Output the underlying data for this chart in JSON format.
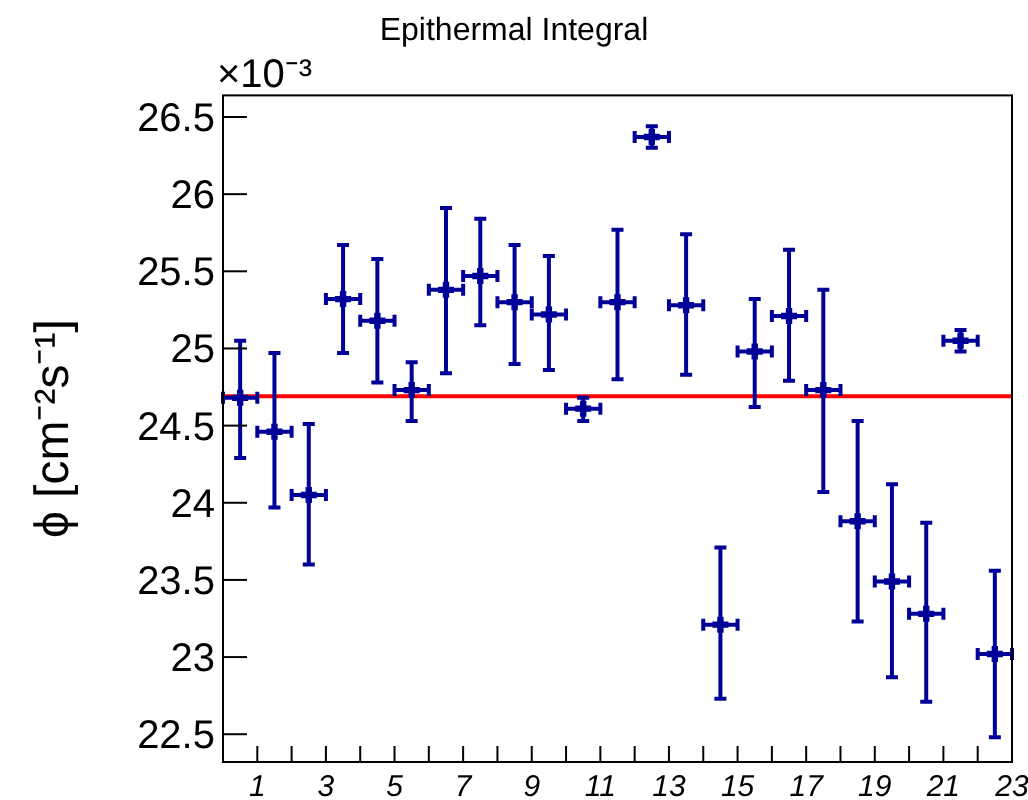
{
  "chart_data": {
    "type": "scatter",
    "title": "Epithermal Integral",
    "ylabel": "ϕ [cm⁻²s⁻¹]",
    "annotations": [
      "×10⁻³"
    ],
    "marker": "cross",
    "grid": false,
    "x": [
      0.5,
      1.5,
      2.5,
      3.5,
      4.5,
      5.5,
      6.5,
      7.5,
      8.5,
      9.5,
      10.5,
      11.5,
      12.5,
      13.5,
      14.5,
      15.5,
      16.5,
      17.5,
      18.5,
      19.5,
      20.5,
      21.5,
      22.5
    ],
    "series": [
      {
        "color": "#000099",
        "values": [
          24.68,
          24.46,
          24.05,
          25.32,
          25.18,
          24.73,
          25.38,
          25.47,
          25.3,
          25.22,
          24.61,
          25.3,
          26.37,
          25.28,
          23.21,
          24.98,
          25.21,
          24.73,
          23.88,
          23.49,
          23.28,
          25.05,
          23.02
        ],
        "errors": [
          [
            24.29,
            25.05
          ],
          [
            23.97,
            24.97
          ],
          [
            23.6,
            24.51
          ],
          [
            24.97,
            25.67
          ],
          [
            24.78,
            25.58
          ],
          [
            24.53,
            24.91
          ],
          [
            24.84,
            25.91
          ],
          [
            25.15,
            25.84
          ],
          [
            24.9,
            25.67
          ],
          [
            24.86,
            25.6
          ],
          [
            24.53,
            24.68
          ],
          [
            24.8,
            25.77
          ],
          [
            26.3,
            26.44
          ],
          [
            24.83,
            25.74
          ],
          [
            22.73,
            23.71
          ],
          [
            24.62,
            25.32
          ],
          [
            24.79,
            25.64
          ],
          [
            24.07,
            25.38
          ],
          [
            23.23,
            24.53
          ],
          [
            22.87,
            24.12
          ],
          [
            22.71,
            23.87
          ],
          [
            24.98,
            25.12
          ],
          [
            22.48,
            23.56
          ]
        ],
        "xerrors": [
          0.5,
          0.5,
          0.5,
          0.5,
          0.5,
          0.5,
          0.5,
          0.5,
          0.5,
          0.5,
          0.5,
          0.5,
          0.5,
          0.5,
          0.5,
          0.5,
          0.5,
          0.5,
          0.5,
          0.5,
          0.5,
          0.5,
          0.5
        ]
      }
    ],
    "ref_lines": [
      {
        "axis": "y",
        "value": 24.69,
        "color": "#ff0000"
      }
    ],
    "xlim": [
      0,
      23
    ],
    "xticks": [
      1,
      {
        "value": 2,
        "label": null
      },
      3,
      {
        "value": 4,
        "label": null
      },
      5,
      {
        "value": 6,
        "label": null
      },
      7,
      {
        "value": 8,
        "label": null
      },
      9,
      {
        "value": 10,
        "label": null
      },
      11,
      {
        "value": 12,
        "label": null
      },
      13,
      {
        "value": 14,
        "label": null
      },
      15,
      {
        "value": 16,
        "label": null
      },
      17,
      {
        "value": 18,
        "label": null
      },
      19,
      {
        "value": 20,
        "label": null
      },
      21,
      {
        "value": 22,
        "label": null
      },
      23
    ],
    "ylim": [
      22.32,
      26.64
    ],
    "yticks": [
      22.5,
      23,
      23.5,
      24,
      24.5,
      25,
      25.5,
      26,
      26.5
    ]
  }
}
